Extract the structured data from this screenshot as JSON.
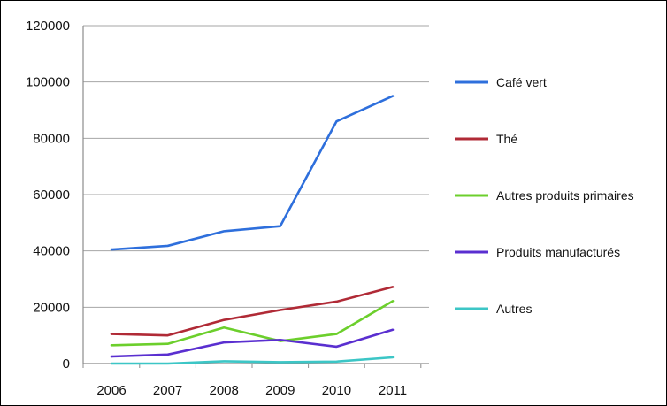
{
  "chart_data": {
    "type": "line",
    "title": "",
    "xlabel": "",
    "ylabel": "",
    "categories": [
      "2006",
      "2007",
      "2008",
      "2009",
      "2010",
      "2011"
    ],
    "ylim": [
      0,
      120000
    ],
    "yticks": [
      0,
      20000,
      40000,
      60000,
      80000,
      100000,
      120000
    ],
    "grid": "horizontal",
    "legend_position": "right",
    "series": [
      {
        "name": "Café vert",
        "color": "#2e6fdc",
        "values": [
          40500,
          41800,
          47000,
          48800,
          86000,
          95000
        ]
      },
      {
        "name": "Thé",
        "color": "#b02a36",
        "values": [
          10500,
          10000,
          15500,
          19000,
          22000,
          27200
        ]
      },
      {
        "name": "Autres produits primaires",
        "color": "#6ccf2c",
        "values": [
          6500,
          7000,
          12800,
          8000,
          10500,
          22200
        ]
      },
      {
        "name": "Produits manufacturés",
        "color": "#5a2fd0",
        "values": [
          2500,
          3200,
          7500,
          8400,
          6000,
          12000
        ]
      },
      {
        "name": "Autres",
        "color": "#3cc6c6",
        "values": [
          0,
          0,
          800,
          500,
          700,
          2200
        ]
      }
    ]
  }
}
